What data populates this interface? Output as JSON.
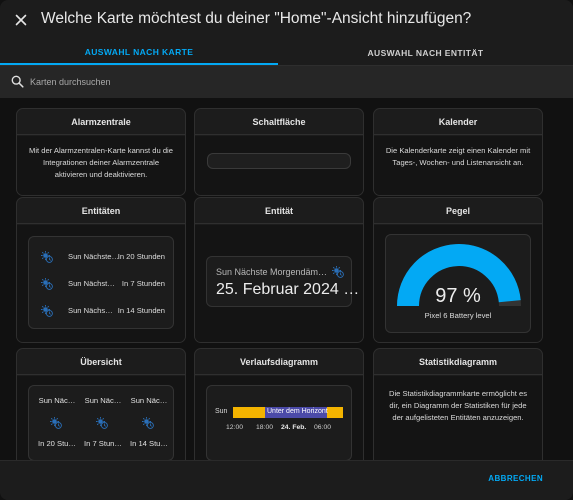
{
  "dialog": {
    "title": "Welche Karte möchtest du deiner \"Home\"-Ansicht hinzufügen?",
    "close_icon": "close-icon"
  },
  "tabs": [
    {
      "label": "AUSWAHL NACH KARTE",
      "active": true
    },
    {
      "label": "AUSWAHL NACH ENTITÄT",
      "active": false
    }
  ],
  "search": {
    "placeholder": "Karten durchsuchen",
    "value": ""
  },
  "colors": {
    "accent": "#03a9f4",
    "sun_icon": "#2a6fb8",
    "history_above": "#f4b400",
    "history_below": "#4b4aa8"
  },
  "cards": {
    "alarm": {
      "title": "Alarmzentrale",
      "description": "Mit der Alarmzentralen-Karte kannst du die Integrationen deiner Alarmzentrale aktivieren und deaktivieren."
    },
    "button": {
      "title": "Schaltfläche"
    },
    "calendar": {
      "title": "Kalender",
      "description": "Die Kalenderkarte zeigt einen Kalender mit Tages-, Wochen- und Listenansicht an."
    },
    "entities": {
      "title": "Entitäten",
      "rows": [
        {
          "name": "Sun Nächste…",
          "state": "In 20 Stunden"
        },
        {
          "name": "Sun Nächst…",
          "state": "In 7 Stunden"
        },
        {
          "name": "Sun Nächs…",
          "state": "In 14 Stunden"
        }
      ]
    },
    "entity": {
      "title": "Entität",
      "name": "Sun Nächste Morgendäm…",
      "value": "25. Februar 2024 …"
    },
    "gauge": {
      "title": "Pegel",
      "value": 97,
      "value_label": "97 %",
      "name": "Pixel 6 Battery level"
    },
    "glance": {
      "title": "Übersicht",
      "items": [
        {
          "name": "Sun Näc…",
          "state": "In 20 Stu…"
        },
        {
          "name": "Sun Näc…",
          "state": "In 7 Stun…"
        },
        {
          "name": "Sun Näc…",
          "state": "In 14 Stu…"
        }
      ]
    },
    "history": {
      "title": "Verlaufsdiagramm",
      "entity_label": "Sun",
      "segment_label": "Unter dem Horizont",
      "ticks": [
        "12:00",
        "18:00",
        "24. Feb.",
        "06:00"
      ]
    },
    "statistics": {
      "title": "Statistikdiagramm",
      "description": "Die Statistikdiagrammkarte ermöglicht es dir, ein Diagramm der Statistiken für jede der aufgelisteten Entitäten anzuzeigen."
    }
  },
  "footer": {
    "cancel_label": "ABBRECHEN"
  }
}
